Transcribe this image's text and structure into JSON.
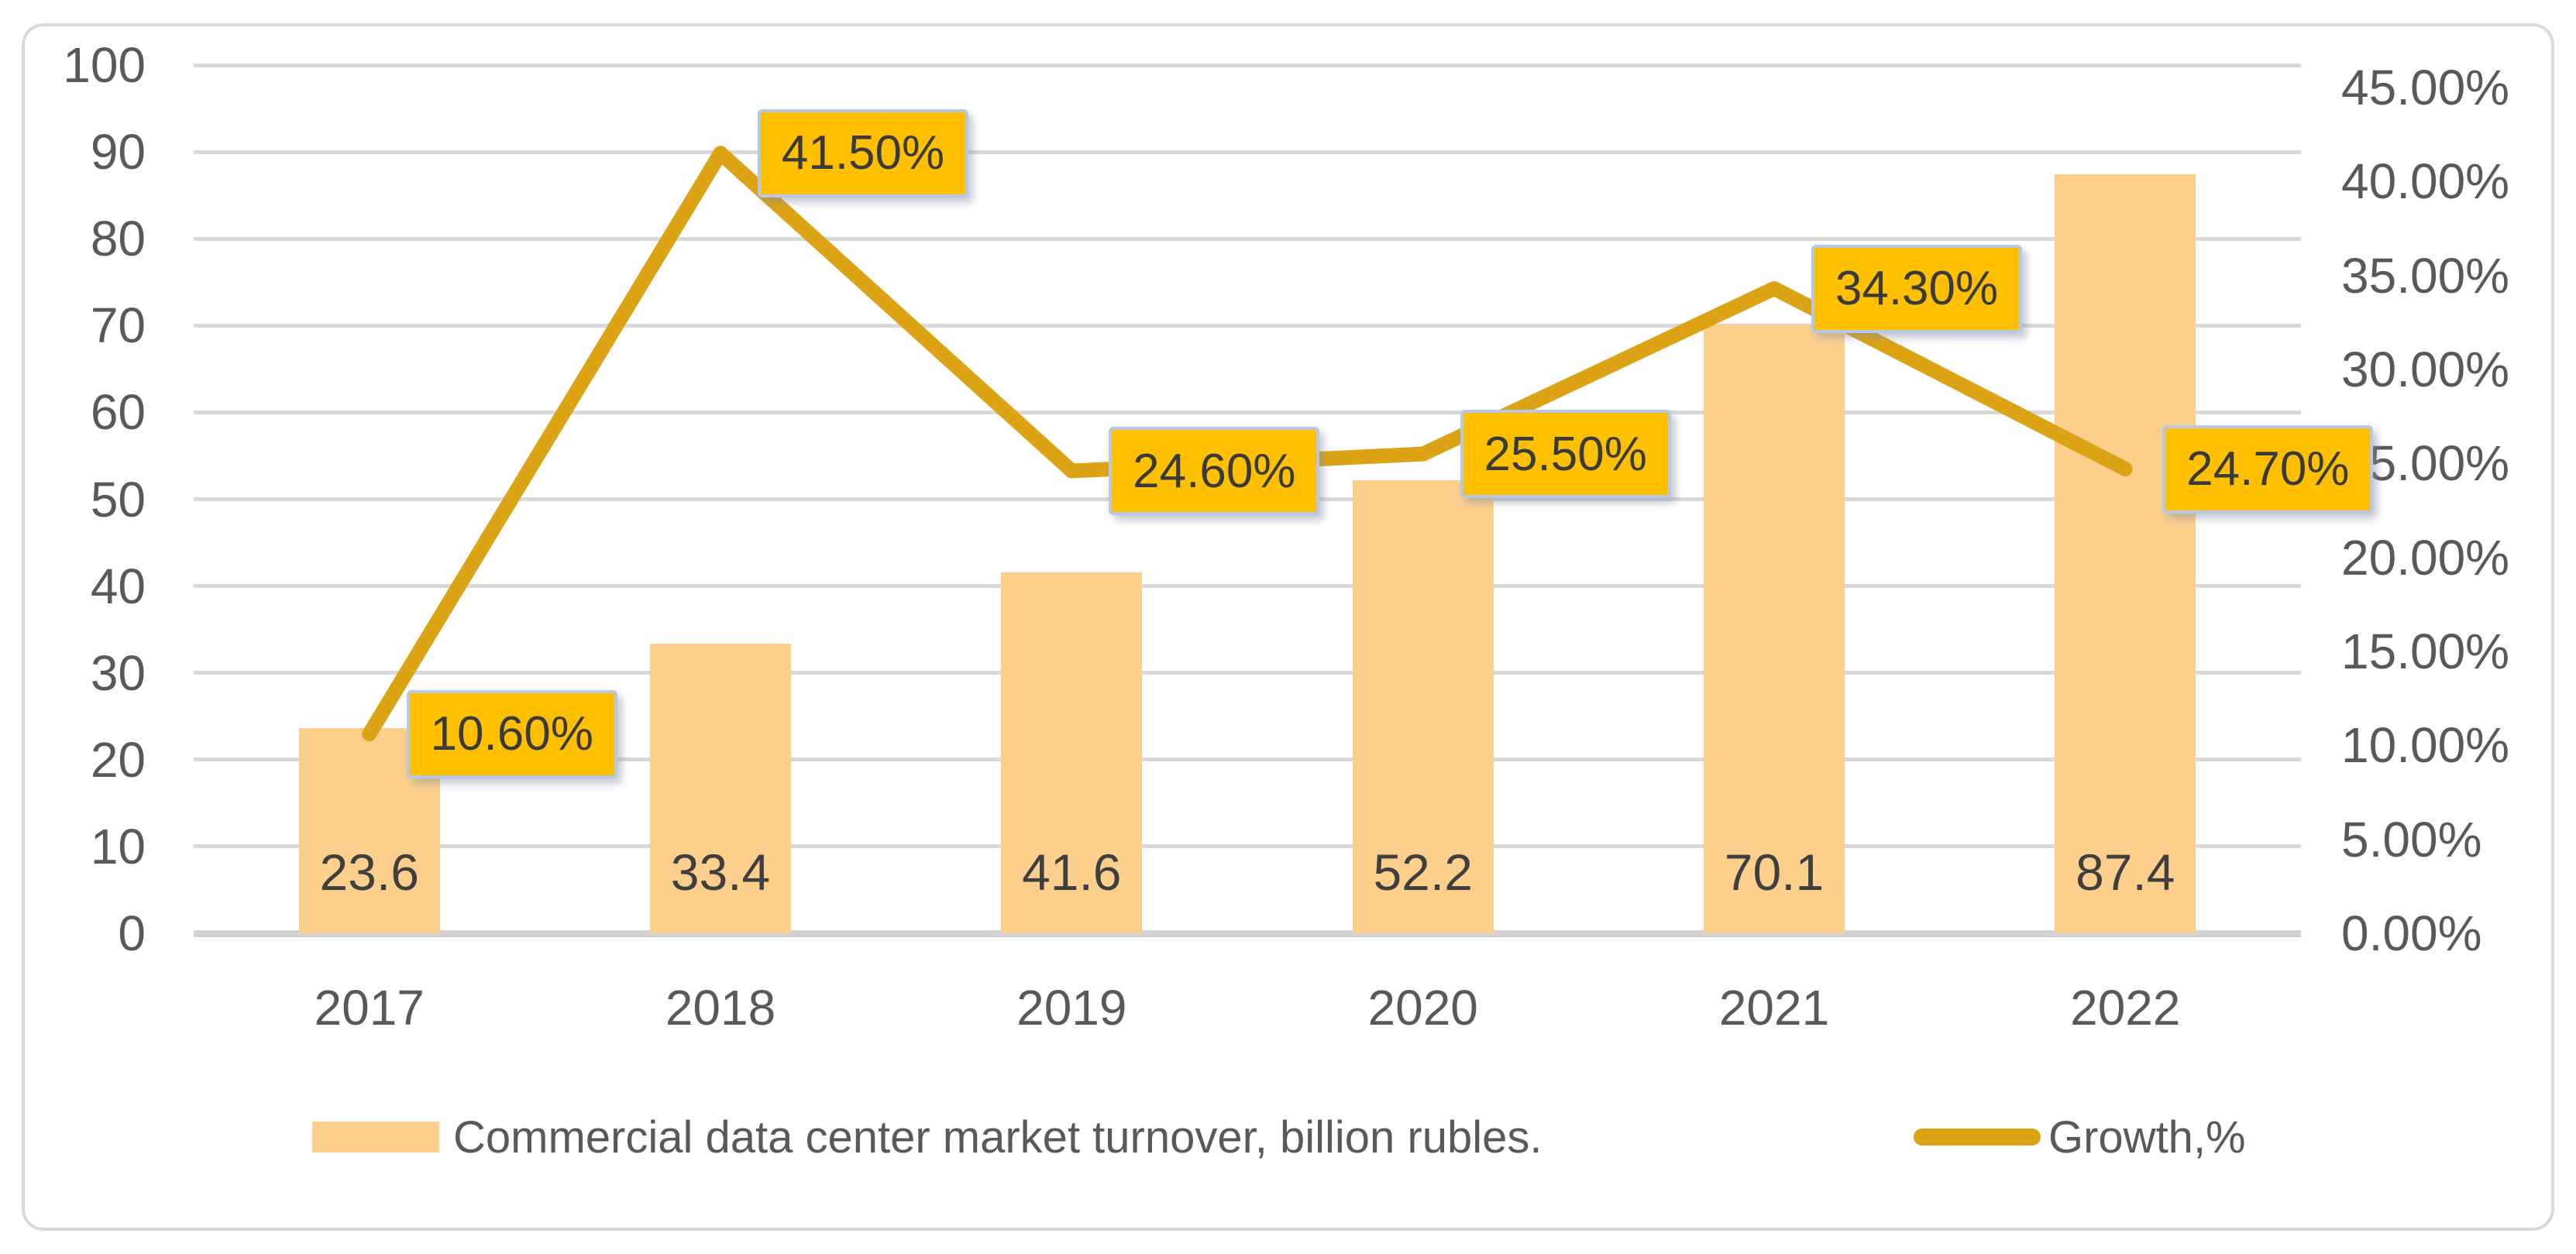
{
  "chart_data": {
    "type": "combo",
    "title": "",
    "categories": [
      "2017",
      "2018",
      "2019",
      "2020",
      "2021",
      "2022"
    ],
    "series": [
      {
        "name": "Commercial data center market turnover, billion rubles.",
        "type": "bar",
        "axis": "left",
        "values": [
          23.6,
          33.4,
          41.6,
          52.2,
          70.1,
          87.4
        ],
        "value_labels": [
          "23.6",
          "33.4",
          "41.6",
          "52.2",
          "70.1",
          "87.4"
        ],
        "color": "#FCD08C"
      },
      {
        "name": "Growth,%",
        "type": "line",
        "axis": "right",
        "values": [
          10.6,
          41.5,
          24.6,
          25.5,
          34.3,
          24.7
        ],
        "value_labels": [
          "10.60%",
          "41.50%",
          "24.60%",
          "25.50%",
          "34.30%",
          "24.70%"
        ],
        "color": "#DCA414",
        "callout_fill": "#FFC000",
        "callout_border": "#B7C8E6",
        "callout_text_color": "#3A3A3A"
      }
    ],
    "left_axis": {
      "min": 0,
      "max": 100,
      "step": 10,
      "tick_labels": [
        "100",
        "90",
        "80",
        "70",
        "60",
        "50",
        "40",
        "30",
        "20",
        "10",
        "0"
      ]
    },
    "right_axis": {
      "min": 0,
      "max": 45,
      "step": 5,
      "tick_labels": [
        "45.00%",
        "40.00%",
        "35.00%",
        "30.00%",
        "25.00%",
        "20.00%",
        "15.00%",
        "10.00%",
        "5.00%",
        "0.00%"
      ]
    },
    "grid": true,
    "legend_position": "bottom",
    "gridline_color": "#D9D9D9",
    "axis_text_color": "#595959",
    "bar_label_color": "#3F3F3F",
    "frame_border_color": "#D9D9D9",
    "background": "#FFFFFF"
  },
  "legend": {
    "items": [
      {
        "label": "Commercial data center market turnover, billion rubles.",
        "swatch": "bar-swatch"
      },
      {
        "label": "Growth,%",
        "swatch": "line-swatch"
      }
    ]
  }
}
